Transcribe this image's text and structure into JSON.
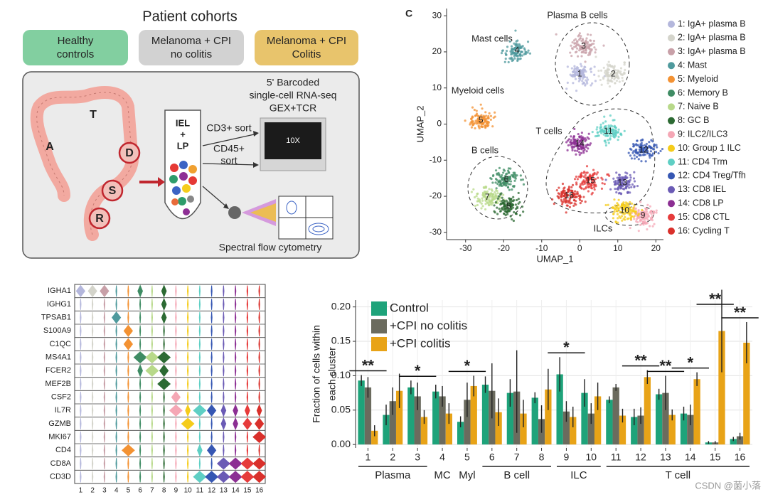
{
  "cohorts": {
    "title": "Patient cohorts",
    "groups": [
      [
        "Healthy",
        "controls"
      ],
      [
        "Melanoma + CPI",
        "no colitis"
      ],
      [
        "Melanoma + CPI",
        "Colitis"
      ]
    ],
    "segments": [
      "A",
      "T",
      "D",
      "S",
      "R"
    ],
    "tube": [
      "IEL",
      "+",
      "LP"
    ],
    "sort1": "CD3+ sort",
    "sort2": [
      "CD45+",
      "sort"
    ],
    "seq": [
      "5' Barcoded",
      "single-cell RNA-seq",
      "GEX+TCR"
    ],
    "chip": "10X",
    "flow": "Spectral flow cytometry"
  },
  "umap": {
    "panel": "C",
    "xlabel": "UMAP_1",
    "ylabel": "UMAP_2",
    "xlim": [
      -35,
      22
    ],
    "ylim": [
      -32,
      32
    ],
    "xticks": [
      -30,
      -20,
      -10,
      0,
      10,
      20
    ],
    "yticks": [
      30,
      20,
      10,
      0,
      -10,
      -20,
      -30
    ],
    "regions": [
      "Plasma B cells",
      "Mast cells",
      "Myeloid cells",
      "T cells",
      "B cells",
      "ILCs"
    ],
    "clusters": [
      {
        "id": "1",
        "name": "1: IgA+ plasma B",
        "color": "#b4b7dc",
        "x": 0,
        "y": 13.8
      },
      {
        "id": "2",
        "name": "2: IgA+ plasma B",
        "color": "#d4d4cb",
        "x": 8.8,
        "y": 13.8
      },
      {
        "id": "3",
        "name": "3: IgA+ plasma B",
        "color": "#c8a0a8",
        "x": 1,
        "y": 21.5
      },
      {
        "id": "4",
        "name": "4: Mast",
        "color": "#4f9a9d",
        "x": -16.5,
        "y": 20.3
      },
      {
        "id": "5",
        "name": "5: Myeloid",
        "color": "#f39233",
        "x": -26,
        "y": 1
      },
      {
        "id": "6",
        "name": "6: Memory B",
        "color": "#3f8c64",
        "x": -19.3,
        "y": -15.4
      },
      {
        "id": "7",
        "name": "7: Naive B",
        "color": "#b8d98a",
        "x": -24.3,
        "y": -20.3
      },
      {
        "id": "8",
        "name": "8: GC B",
        "color": "#2c6a33",
        "x": -18.7,
        "y": -22.8
      },
      {
        "id": "9",
        "name": "9: ILC2/ILC3",
        "color": "#f5a7b5",
        "x": 16.6,
        "y": -25.4
      },
      {
        "id": "10",
        "name": "10: Group 1 ILC",
        "color": "#f5cc1b",
        "x": 11.8,
        "y": -24
      },
      {
        "id": "11",
        "name": "11: CD4 Trm",
        "color": "#5fcfc4",
        "x": 7.5,
        "y": -2
      },
      {
        "id": "12",
        "name": "12: CD4 Treg/Tfh",
        "color": "#3657b3",
        "x": 16.8,
        "y": -7.3
      },
      {
        "id": "13",
        "name": "13: CD8 IEL",
        "color": "#6b5bb5",
        "x": 11.2,
        "y": -16.3
      },
      {
        "id": "14",
        "name": "14: CD8 LP",
        "color": "#8c2f93",
        "x": 0,
        "y": -5.5
      },
      {
        "id": "15",
        "name": "15: CD8 CTL",
        "color": "#e63b3b",
        "x": 2.8,
        "y": -15.7
      },
      {
        "id": "16",
        "name": "16: Cycling T",
        "color": "#d9302b",
        "x": -2.8,
        "y": -19.9
      }
    ]
  },
  "violin": {
    "categories": [
      "1",
      "2",
      "3",
      "4",
      "5",
      "6",
      "7",
      "8",
      "9",
      "10",
      "11",
      "12",
      "13",
      "14",
      "15",
      "16"
    ],
    "genes": [
      {
        "name": "IGHA1",
        "values": [
          2,
          2,
          2,
          0,
          0,
          1,
          0,
          1,
          0,
          0,
          0,
          0,
          0,
          0,
          0,
          0
        ]
      },
      {
        "name": "IGHG1",
        "values": [
          0,
          0,
          0,
          0,
          0,
          0,
          0,
          1,
          0,
          0,
          0,
          0,
          0,
          0,
          0,
          0
        ]
      },
      {
        "name": "TPSAB1",
        "values": [
          0,
          0,
          0,
          2,
          0,
          0,
          0,
          1,
          0,
          0,
          0,
          0,
          0,
          0,
          0,
          0
        ]
      },
      {
        "name": "S100A9",
        "values": [
          0,
          0,
          0,
          0,
          2,
          0,
          0,
          0,
          0,
          0,
          0,
          0,
          0,
          0,
          0,
          0
        ]
      },
      {
        "name": "C1QC",
        "values": [
          0,
          0,
          0,
          0,
          2,
          0,
          0,
          0,
          0,
          0,
          0,
          0,
          0,
          0,
          0,
          0
        ]
      },
      {
        "name": "MS4A1",
        "values": [
          0,
          0,
          0,
          0,
          0,
          3,
          3,
          3,
          0,
          0,
          0,
          0,
          0,
          0,
          0,
          0
        ]
      },
      {
        "name": "FCER2",
        "values": [
          0,
          0,
          0,
          0,
          0,
          1,
          3,
          2,
          0,
          0,
          0,
          0,
          0,
          0,
          0,
          0
        ]
      },
      {
        "name": "MEF2B",
        "values": [
          0,
          0,
          0,
          0,
          0,
          0,
          0,
          3,
          0,
          0,
          0,
          0,
          0,
          0,
          0,
          0
        ]
      },
      {
        "name": "CSF2",
        "values": [
          0,
          0,
          0,
          0,
          0,
          0,
          0,
          0,
          2,
          0,
          0,
          0,
          0,
          0,
          0,
          0
        ]
      },
      {
        "name": "IL7R",
        "values": [
          0,
          0,
          0,
          0,
          0,
          0,
          0,
          0,
          3,
          1,
          3,
          2,
          1,
          1,
          1,
          1
        ]
      },
      {
        "name": "GZMB",
        "values": [
          0,
          0,
          0,
          0,
          0,
          0,
          0,
          0,
          0,
          3,
          0,
          0,
          1,
          1,
          2,
          2
        ]
      },
      {
        "name": "MKI67",
        "values": [
          0,
          0,
          0,
          0,
          0,
          0,
          0,
          0,
          0,
          0,
          0,
          0,
          0,
          0,
          0,
          3
        ]
      },
      {
        "name": "CD4",
        "values": [
          0,
          0,
          0,
          0,
          3,
          0,
          0,
          0,
          0,
          0,
          1,
          2,
          0,
          0,
          0,
          0
        ]
      },
      {
        "name": "CD8A",
        "values": [
          0,
          0,
          0,
          0,
          0,
          0,
          0,
          0,
          0,
          0,
          0,
          0,
          3,
          3,
          3,
          3
        ]
      },
      {
        "name": "CD3D",
        "values": [
          0,
          0,
          0,
          0,
          0,
          0,
          0,
          0,
          0,
          0,
          3,
          3,
          3,
          3,
          3,
          3
        ]
      }
    ]
  },
  "chart_data": {
    "type": "bar",
    "ylabel": [
      "Fraction of cells within",
      "each cluster"
    ],
    "categories": [
      "1",
      "2",
      "3",
      "4",
      "5",
      "6",
      "7",
      "8",
      "9",
      "10",
      "11",
      "12",
      "13",
      "14",
      "15",
      "16"
    ],
    "ylim": [
      -0.005,
      0.21
    ],
    "yticks": [
      {
        "value": 0,
        "label": "0.00"
      },
      {
        "value": 0.05,
        "label": "0.05"
      },
      {
        "value": 0.1,
        "label": "0.10"
      },
      {
        "value": 0.15,
        "label": "0.15"
      },
      {
        "value": 0.2,
        "label": "0.20"
      }
    ],
    "grid": true,
    "legend": "top-left",
    "series": [
      {
        "name": "Control",
        "color": "#1ea37a",
        "values": [
          0.093,
          0.043,
          0.083,
          0.077,
          0.033,
          0.087,
          0.075,
          0.068,
          0.102,
          0.075,
          0.065,
          0.04,
          0.073,
          0.045,
          0.003,
          0.008
        ],
        "errors": [
          0.008,
          0.015,
          0.01,
          0.01,
          0.008,
          0.012,
          0.02,
          0.008,
          0.025,
          0.02,
          0.005,
          0.012,
          0.008,
          0.01,
          0.002,
          0.003
        ]
      },
      {
        "name": "+CPI no colitis",
        "color": "#6b6b5e",
        "values": [
          0.083,
          0.063,
          0.07,
          0.07,
          0.065,
          0.078,
          0.077,
          0.037,
          0.048,
          0.045,
          0.083,
          0.042,
          0.075,
          0.043,
          0.003,
          0.012
        ],
        "errors": [
          0.015,
          0.02,
          0.02,
          0.015,
          0.025,
          0.04,
          0.06,
          0.02,
          0.015,
          0.015,
          0.005,
          0.012,
          0.025,
          0.015,
          0.002,
          0.005
        ]
      },
      {
        "name": "+CPI colitis",
        "color": "#e8a317",
        "values": [
          0.02,
          0.078,
          0.04,
          0.045,
          0.085,
          0.047,
          0.045,
          0.08,
          0.04,
          0.07,
          0.042,
          0.098,
          0.043,
          0.095,
          0.165,
          0.148
        ],
        "errors": [
          0.008,
          0.025,
          0.01,
          0.015,
          0.015,
          0.02,
          0.02,
          0.03,
          0.015,
          0.02,
          0.01,
          0.01,
          0.008,
          0.01,
          0.06,
          0.03
        ]
      }
    ],
    "significance": [
      "**",
      null,
      "*",
      null,
      "*",
      null,
      null,
      null,
      "*",
      null,
      null,
      "**",
      "**",
      "*",
      "**",
      "**"
    ],
    "groups": [
      {
        "label": "Plasma",
        "from": "1",
        "to": "3"
      },
      {
        "label": "MC",
        "from": "4",
        "to": "4"
      },
      {
        "label": "Myl",
        "from": "5",
        "to": "5"
      },
      {
        "label": "B cell",
        "from": "6",
        "to": "8"
      },
      {
        "label": "ILC",
        "from": "9",
        "to": "10"
      },
      {
        "label": "T cell",
        "from": "11",
        "to": "16"
      }
    ]
  },
  "watermark": "CSDN @菌小落"
}
